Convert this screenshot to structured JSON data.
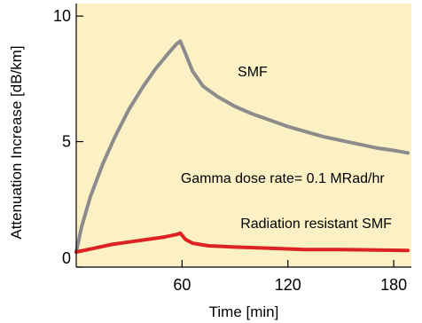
{
  "chart_data": {
    "type": "line",
    "title": "",
    "xlabel": "Time [min]",
    "ylabel": "Attenuation Increase [dB/km]",
    "xlim": [
      0,
      190
    ],
    "ylim": [
      0,
      10.5
    ],
    "x_ticks": [
      60,
      120,
      180
    ],
    "y_ticks": [
      0,
      5,
      10
    ],
    "grid": false,
    "legend": "none",
    "background_color": "#fbf1c4",
    "series": [
      {
        "name": "SMF",
        "color": "#8c8c8c",
        "points": [
          [
            0,
            0.6
          ],
          [
            3,
            1.6
          ],
          [
            8,
            2.8
          ],
          [
            15,
            4.1
          ],
          [
            22,
            5.2
          ],
          [
            30,
            6.3
          ],
          [
            38,
            7.2
          ],
          [
            45,
            7.9
          ],
          [
            52,
            8.5
          ],
          [
            57,
            8.9
          ],
          [
            59,
            9.0
          ],
          [
            62,
            8.5
          ],
          [
            66,
            7.8
          ],
          [
            72,
            7.2
          ],
          [
            80,
            6.8
          ],
          [
            90,
            6.4
          ],
          [
            100,
            6.1
          ],
          [
            110,
            5.85
          ],
          [
            120,
            5.6
          ],
          [
            130,
            5.4
          ],
          [
            140,
            5.2
          ],
          [
            150,
            5.05
          ],
          [
            160,
            4.9
          ],
          [
            170,
            4.75
          ],
          [
            180,
            4.65
          ],
          [
            188,
            4.55
          ]
        ]
      },
      {
        "name": "Radiation resistant SMF",
        "color": "#dd2222",
        "points": [
          [
            0,
            0.6
          ],
          [
            10,
            0.75
          ],
          [
            20,
            0.9
          ],
          [
            30,
            1.0
          ],
          [
            40,
            1.1
          ],
          [
            50,
            1.2
          ],
          [
            57,
            1.3
          ],
          [
            59,
            1.35
          ],
          [
            62,
            1.1
          ],
          [
            66,
            0.95
          ],
          [
            75,
            0.85
          ],
          [
            90,
            0.8
          ],
          [
            110,
            0.75
          ],
          [
            130,
            0.7
          ],
          [
            150,
            0.7
          ],
          [
            170,
            0.68
          ],
          [
            188,
            0.66
          ]
        ]
      }
    ],
    "annotations": [
      {
        "text": "SMF",
        "x": 100,
        "y": 7.6
      },
      {
        "text": "Gamma dose rate= 0.1 MRad/hr",
        "x": 117,
        "y": 3.35
      },
      {
        "text": "Radiation resistant SMF",
        "x": 136,
        "y": 1.55
      }
    ]
  }
}
